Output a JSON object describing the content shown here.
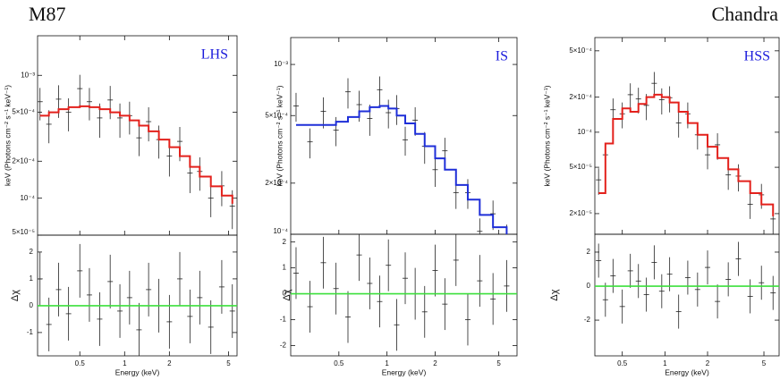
{
  "source": "M87",
  "instrument": "Chandra",
  "chart_data": [
    {
      "type": "spectrum",
      "title": "LHS",
      "title_color": "#1a1adb",
      "ylabel": "keV (Photons cm⁻² s⁻¹ keV⁻¹)",
      "residual_ylabel": "Δχ",
      "xlabel": "Energy (keV)",
      "log_x": true,
      "log_y": true,
      "xlim": [
        0.26,
        5.7
      ],
      "xticks": [
        0.5,
        1,
        2,
        5
      ],
      "ylim": [
        5e-05,
        0.0021
      ],
      "yticks": [
        {
          "value": 0.001,
          "label": "10⁻³"
        },
        {
          "value": 0.0005,
          "label": "5×10⁻⁴"
        },
        {
          "value": 0.0002,
          "label": "2×10⁻⁴"
        },
        {
          "value": 0.0001,
          "label": "10⁻⁴"
        },
        {
          "value": 5e-05,
          "label": "5×10⁻⁵"
        }
      ],
      "residual_ylim": [
        -1.87,
        2.63
      ],
      "residual_yticks": [
        -1,
        0,
        1,
        2
      ],
      "x": [
        0.27,
        0.31,
        0.36,
        0.42,
        0.5,
        0.58,
        0.68,
        0.8,
        0.93,
        1.08,
        1.25,
        1.45,
        1.7,
        2.0,
        2.35,
        2.75,
        3.2,
        3.8,
        4.5,
        5.3
      ],
      "model": {
        "color": "#e3211c",
        "values": [
          0.00047,
          0.0005,
          0.00053,
          0.00055,
          0.00056,
          0.00055,
          0.00053,
          0.0005,
          0.00047,
          0.00043,
          0.00039,
          0.00035,
          0.0003,
          0.00026,
          0.00022,
          0.00018,
          0.00015,
          0.000125,
          0.000105,
          9e-05
        ]
      },
      "data": {
        "color": "#222222",
        "values": [
          0.00061,
          0.0004,
          0.00064,
          0.0005,
          0.00078,
          0.00061,
          0.00045,
          0.00063,
          0.00045,
          0.00047,
          0.00031,
          0.00042,
          0.0003,
          0.00022,
          0.00029,
          0.00016,
          0.000165,
          0.0001,
          0.000126,
          8.6e-05
        ],
        "errors": [
          0.00018,
          0.00012,
          0.00019,
          0.00015,
          0.00023,
          0.00018,
          0.00014,
          0.00019,
          0.00014,
          0.00014,
          9e-05,
          0.00013,
          9e-05,
          7e-05,
          9e-05,
          5e-05,
          5e-05,
          3e-05,
          4e-05,
          3e-05
        ]
      },
      "residuals": {
        "values": [
          1.0,
          -0.7,
          0.6,
          -0.3,
          1.3,
          0.4,
          -0.5,
          0.9,
          -0.2,
          0.3,
          -0.9,
          0.6,
          0.0,
          -0.6,
          1.0,
          -0.4,
          0.3,
          -0.8,
          0.7,
          -0.2
        ],
        "errors": [
          1,
          1,
          1,
          1,
          1,
          1,
          1,
          1,
          1,
          1,
          1,
          1,
          1,
          1,
          1,
          1,
          1,
          1,
          1,
          1
        ]
      },
      "residual_line": {
        "value": 0,
        "color": "#3be03b"
      }
    },
    {
      "type": "spectrum",
      "title": "IS",
      "title_color": "#1a1adb",
      "ylabel": "keV (Photons cm⁻² s⁻¹ keV⁻¹)",
      "residual_ylabel": "Δχ",
      "xlabel": "Energy (keV)",
      "log_x": true,
      "log_y": true,
      "xlim": [
        0.25,
        6.5
      ],
      "xticks": [
        0.5,
        1,
        2,
        5
      ],
      "ylim": [
        0.0001,
        0.00144
      ],
      "yticks": [
        {
          "value": 0.001,
          "label": "10⁻³"
        },
        {
          "value": 0.0005,
          "label": "5×10⁻⁴"
        },
        {
          "value": 0.0002,
          "label": "2×10⁻⁴"
        },
        {
          "value": 0.0001,
          "label": "10⁻⁴"
        }
      ],
      "residual_ylim": [
        -2.4,
        2.3
      ],
      "residual_yticks": [
        -2,
        -1,
        0,
        1,
        2
      ],
      "x": [
        0.27,
        0.33,
        0.4,
        0.48,
        0.57,
        0.67,
        0.78,
        0.9,
        1.02,
        1.15,
        1.3,
        1.5,
        1.72,
        2.0,
        2.3,
        2.7,
        3.2,
        3.8,
        4.6,
        5.6
      ],
      "model": {
        "color": "#1f2fd8",
        "values": [
          0.00044,
          0.00044,
          0.00044,
          0.00046,
          0.00049,
          0.00053,
          0.00056,
          0.00057,
          0.00055,
          0.0005,
          0.00045,
          0.00039,
          0.00033,
          0.00028,
          0.00024,
          0.000195,
          0.00016,
          0.00013,
          0.00011,
          0.0001
        ]
      },
      "data": {
        "color": "#222222",
        "values": [
          0.00057,
          0.00035,
          0.00053,
          0.00041,
          0.00069,
          0.00058,
          0.00048,
          0.00071,
          0.00052,
          0.00055,
          0.00036,
          0.00047,
          0.00033,
          0.00024,
          0.00031,
          0.000176,
          0.000176,
          0.000104,
          0.000132,
          9.5e-05
        ],
        "errors": [
          0.00011,
          7e-05,
          0.00011,
          8e-05,
          0.00014,
          0.00012,
          0.0001,
          0.00014,
          0.0001,
          0.00011,
          7e-05,
          9e-05,
          7e-05,
          5e-05,
          6e-05,
          3.5e-05,
          3.5e-05,
          2e-05,
          2.6e-05,
          1.9e-05
        ]
      },
      "residuals": {
        "values": [
          0.8,
          -0.5,
          1.2,
          0.2,
          -0.9,
          1.5,
          0.4,
          -0.3,
          1.1,
          -1.2,
          0.6,
          0.0,
          -0.7,
          0.9,
          -0.4,
          1.3,
          -1.0,
          0.5,
          -0.2,
          0.3
        ],
        "errors": [
          1,
          1,
          1,
          1,
          1,
          1,
          1,
          1,
          1,
          1,
          1,
          1,
          1,
          1,
          1,
          1,
          1,
          1,
          1,
          1
        ]
      },
      "residual_line": {
        "value": 0,
        "color": "#3be03b"
      }
    },
    {
      "type": "spectrum",
      "title": "HSS",
      "title_color": "#1a1adb",
      "ylabel": "keV (Photons cm⁻² s⁻¹ keV⁻¹)",
      "residual_ylabel": "Δχ",
      "xlabel": "Energy (keV)",
      "log_x": true,
      "log_y": true,
      "xlim": [
        0.32,
        6.4
      ],
      "xticks": [
        0.5,
        1,
        2,
        5
      ],
      "ylim": [
        1.33e-05,
        0.00065
      ],
      "yticks": [
        {
          "value": 0.0005,
          "label": "5×10⁻⁴"
        },
        {
          "value": 0.0002,
          "label": "2×10⁻⁴"
        },
        {
          "value": 0.0001,
          "label": "10⁻⁴"
        },
        {
          "value": 5e-05,
          "label": "5×10⁻⁵"
        },
        {
          "value": 2e-05,
          "label": "2×10⁻⁵"
        }
      ],
      "residual_ylim": [
        -4.1,
        3.05
      ],
      "residual_yticks": [
        -2,
        0,
        2
      ],
      "x": [
        0.34,
        0.38,
        0.43,
        0.5,
        0.57,
        0.65,
        0.74,
        0.84,
        0.95,
        1.08,
        1.25,
        1.45,
        1.7,
        2.0,
        2.35,
        2.8,
        3.3,
        4.0,
        4.8,
        5.8
      ],
      "model": {
        "color": "#e3211c",
        "values": [
          3e-05,
          8e-05,
          0.00013,
          0.00016,
          0.00015,
          0.000175,
          0.0002,
          0.00021,
          0.0002,
          0.00018,
          0.00015,
          0.00012,
          9.5e-05,
          7.5e-05,
          6e-05,
          4.8e-05,
          3.8e-05,
          3e-05,
          2.4e-05,
          1.9e-05
        ]
      },
      "data": {
        "color": "#222222",
        "values": [
          3.9e-05,
          6.4e-05,
          0.000156,
          0.000144,
          0.00021,
          0.000193,
          0.00017,
          0.000263,
          0.00019,
          0.000198,
          0.00012,
          0.000144,
          9.5e-05,
          6.4e-05,
          7.8e-05,
          4.3e-05,
          4.2e-05,
          2.4e-05,
          2.9e-05,
          1.8e-05
        ],
        "errors": [
          1e-05,
          1.6e-05,
          3.9e-05,
          3.6e-05,
          5.3e-05,
          4.8e-05,
          4.3e-05,
          6.6e-05,
          4.8e-05,
          5e-05,
          3e-05,
          3.6e-05,
          2.4e-05,
          1.6e-05,
          2e-05,
          1.1e-05,
          1.1e-05,
          6e-06,
          7e-06,
          5e-06
        ]
      },
      "residuals": {
        "values": [
          1.5,
          -0.8,
          0.6,
          -1.2,
          0.9,
          0.3,
          -0.5,
          1.4,
          -0.3,
          0.7,
          -1.5,
          0.5,
          -0.2,
          1.1,
          -0.9,
          0.4,
          1.6,
          -0.6,
          0.2,
          -0.4
        ],
        "errors": [
          1,
          1,
          1,
          1,
          1,
          1,
          1,
          1,
          1,
          1,
          1,
          1,
          1,
          1,
          1,
          1,
          1,
          1,
          1,
          1
        ]
      },
      "residual_line": {
        "value": 0,
        "color": "#3be03b"
      }
    }
  ]
}
